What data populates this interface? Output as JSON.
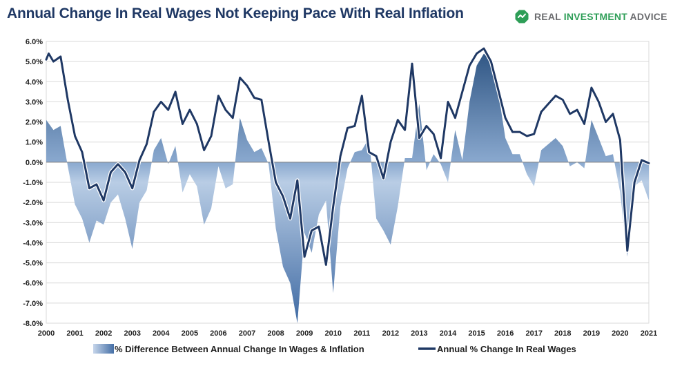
{
  "header": {
    "title": "Annual Change In Real Wages Not Keeping Pace With Real Inflation",
    "brand_part1": "REAL ",
    "brand_part2": "INVESTMENT",
    "brand_part3": " ADVICE",
    "brand_color": "#2e9e57"
  },
  "chart_data": {
    "type": "area",
    "title": "Annual Change In Real Wages Not Keeping Pace With Real Inflation",
    "ylim": [
      -8,
      6
    ],
    "xlim": [
      2000,
      2021
    ],
    "grid": true,
    "legend_position": "bottom",
    "y_ticks": [
      "6.0%",
      "5.0%",
      "4.0%",
      "3.0%",
      "2.0%",
      "1.0%",
      "0.0%",
      "-1.0%",
      "-2.0%",
      "-3.0%",
      "-4.0%",
      "-5.0%",
      "-6.0%",
      "-7.0%",
      "-8.0%"
    ],
    "x_ticks": [
      "2000",
      "2001",
      "2002",
      "2003",
      "2004",
      "2005",
      "2006",
      "2007",
      "2008",
      "2009",
      "2010",
      "2011",
      "2012",
      "2013",
      "2014",
      "2015",
      "2016",
      "2017",
      "2018",
      "2019",
      "2020",
      "2021"
    ],
    "series": [
      {
        "name": "% Difference Between Annual Change In Wages & Inflation",
        "type": "area",
        "color": "#5e82b4",
        "points": [
          [
            2000.0,
            2.1
          ],
          [
            2000.25,
            1.6
          ],
          [
            2000.5,
            1.8
          ],
          [
            2000.75,
            -0.2
          ],
          [
            2001.0,
            -2.1
          ],
          [
            2001.25,
            -2.8
          ],
          [
            2001.5,
            -4.0
          ],
          [
            2001.75,
            -2.9
          ],
          [
            2002.0,
            -3.1
          ],
          [
            2002.25,
            -2.0
          ],
          [
            2002.5,
            -1.6
          ],
          [
            2002.75,
            -2.8
          ],
          [
            2003.0,
            -4.3
          ],
          [
            2003.25,
            -2.0
          ],
          [
            2003.5,
            -1.4
          ],
          [
            2003.75,
            0.6
          ],
          [
            2004.0,
            1.2
          ],
          [
            2004.25,
            -0.1
          ],
          [
            2004.5,
            0.8
          ],
          [
            2004.75,
            -1.5
          ],
          [
            2005.0,
            -0.6
          ],
          [
            2005.25,
            -1.2
          ],
          [
            2005.5,
            -3.1
          ],
          [
            2005.75,
            -2.3
          ],
          [
            2006.0,
            -0.2
          ],
          [
            2006.25,
            -1.3
          ],
          [
            2006.5,
            -1.1
          ],
          [
            2006.75,
            2.2
          ],
          [
            2007.0,
            1.1
          ],
          [
            2007.25,
            0.5
          ],
          [
            2007.5,
            0.7
          ],
          [
            2007.75,
            -0.1
          ],
          [
            2008.0,
            -3.3
          ],
          [
            2008.25,
            -5.2
          ],
          [
            2008.5,
            -6.0
          ],
          [
            2008.75,
            -8.0
          ],
          [
            2009.0,
            -3.5
          ],
          [
            2009.25,
            -4.5
          ],
          [
            2009.5,
            -2.6
          ],
          [
            2009.75,
            -1.9
          ],
          [
            2010.0,
            -6.5
          ],
          [
            2010.25,
            -2.2
          ],
          [
            2010.5,
            -0.3
          ],
          [
            2010.75,
            0.5
          ],
          [
            2011.0,
            0.6
          ],
          [
            2011.25,
            1.2
          ],
          [
            2011.5,
            -2.8
          ],
          [
            2011.75,
            -3.4
          ],
          [
            2012.0,
            -4.1
          ],
          [
            2012.25,
            -2.2
          ],
          [
            2012.5,
            0.2
          ],
          [
            2012.75,
            0.2
          ],
          [
            2013.0,
            2.9
          ],
          [
            2013.25,
            -0.4
          ],
          [
            2013.5,
            0.4
          ],
          [
            2013.75,
            -0.1
          ],
          [
            2014.0,
            -1.0
          ],
          [
            2014.25,
            1.6
          ],
          [
            2014.5,
            0.1
          ],
          [
            2014.75,
            3.0
          ],
          [
            2015.0,
            4.8
          ],
          [
            2015.25,
            5.4
          ],
          [
            2015.5,
            5.0
          ],
          [
            2015.75,
            3.5
          ],
          [
            2016.0,
            1.2
          ],
          [
            2016.25,
            0.4
          ],
          [
            2016.5,
            0.4
          ],
          [
            2016.75,
            -0.6
          ],
          [
            2017.0,
            -1.2
          ],
          [
            2017.25,
            0.6
          ],
          [
            2017.5,
            0.9
          ],
          [
            2017.75,
            1.2
          ],
          [
            2018.0,
            0.8
          ],
          [
            2018.25,
            -0.2
          ],
          [
            2018.5,
            0.0
          ],
          [
            2018.75,
            -0.3
          ],
          [
            2019.0,
            2.1
          ],
          [
            2019.25,
            1.2
          ],
          [
            2019.5,
            0.3
          ],
          [
            2019.75,
            0.4
          ],
          [
            2020.0,
            -1.5
          ],
          [
            2020.25,
            -4.7
          ],
          [
            2020.5,
            -1.2
          ],
          [
            2020.75,
            -0.9
          ],
          [
            2021.0,
            -1.9
          ]
        ]
      },
      {
        "name": "Annual % Change In Real Wages",
        "type": "line",
        "color": "#1f3864",
        "points": [
          [
            2000.0,
            5.1
          ],
          [
            2000.083,
            5.4
          ],
          [
            2000.25,
            5.0
          ],
          [
            2000.5,
            5.25
          ],
          [
            2000.75,
            3.1
          ],
          [
            2001.0,
            1.3
          ],
          [
            2001.25,
            0.5
          ],
          [
            2001.5,
            -1.3
          ],
          [
            2001.75,
            -1.1
          ],
          [
            2002.0,
            -1.9
          ],
          [
            2002.25,
            -0.5
          ],
          [
            2002.5,
            -0.1
          ],
          [
            2002.75,
            -0.5
          ],
          [
            2003.0,
            -1.3
          ],
          [
            2003.25,
            0.1
          ],
          [
            2003.5,
            0.9
          ],
          [
            2003.75,
            2.5
          ],
          [
            2004.0,
            3.0
          ],
          [
            2004.25,
            2.6
          ],
          [
            2004.5,
            3.5
          ],
          [
            2004.75,
            1.9
          ],
          [
            2005.0,
            2.6
          ],
          [
            2005.25,
            1.9
          ],
          [
            2005.5,
            0.6
          ],
          [
            2005.75,
            1.3
          ],
          [
            2006.0,
            3.3
          ],
          [
            2006.25,
            2.6
          ],
          [
            2006.5,
            2.2
          ],
          [
            2006.75,
            4.2
          ],
          [
            2007.0,
            3.8
          ],
          [
            2007.25,
            3.2
          ],
          [
            2007.5,
            3.1
          ],
          [
            2007.75,
            1.0
          ],
          [
            2008.0,
            -1.0
          ],
          [
            2008.25,
            -1.7
          ],
          [
            2008.5,
            -2.8
          ],
          [
            2008.75,
            -0.9
          ],
          [
            2009.0,
            -4.7
          ],
          [
            2009.25,
            -3.4
          ],
          [
            2009.5,
            -3.2
          ],
          [
            2009.75,
            -5.1
          ],
          [
            2010.0,
            -2.2
          ],
          [
            2010.25,
            0.3
          ],
          [
            2010.5,
            1.7
          ],
          [
            2010.75,
            1.8
          ],
          [
            2011.0,
            3.3
          ],
          [
            2011.25,
            0.5
          ],
          [
            2011.5,
            0.3
          ],
          [
            2011.75,
            -0.8
          ],
          [
            2012.0,
            1.0
          ],
          [
            2012.25,
            2.1
          ],
          [
            2012.5,
            1.6
          ],
          [
            2012.75,
            4.9
          ],
          [
            2013.0,
            1.2
          ],
          [
            2013.25,
            1.8
          ],
          [
            2013.5,
            1.4
          ],
          [
            2013.75,
            0.2
          ],
          [
            2014.0,
            3.0
          ],
          [
            2014.25,
            2.2
          ],
          [
            2014.5,
            3.5
          ],
          [
            2014.75,
            4.8
          ],
          [
            2015.0,
            5.4
          ],
          [
            2015.25,
            5.65
          ],
          [
            2015.5,
            5.0
          ],
          [
            2015.75,
            3.6
          ],
          [
            2016.0,
            2.2
          ],
          [
            2016.25,
            1.5
          ],
          [
            2016.5,
            1.5
          ],
          [
            2016.75,
            1.3
          ],
          [
            2017.0,
            1.4
          ],
          [
            2017.25,
            2.5
          ],
          [
            2017.5,
            2.9
          ],
          [
            2017.75,
            3.3
          ],
          [
            2018.0,
            3.1
          ],
          [
            2018.25,
            2.4
          ],
          [
            2018.5,
            2.6
          ],
          [
            2018.75,
            1.9
          ],
          [
            2019.0,
            3.7
          ],
          [
            2019.25,
            3.0
          ],
          [
            2019.5,
            2.0
          ],
          [
            2019.75,
            2.4
          ],
          [
            2020.0,
            1.1
          ],
          [
            2020.25,
            -4.4
          ],
          [
            2020.5,
            -1.0
          ],
          [
            2020.75,
            0.1
          ],
          [
            2021.0,
            -0.05
          ]
        ]
      }
    ]
  }
}
